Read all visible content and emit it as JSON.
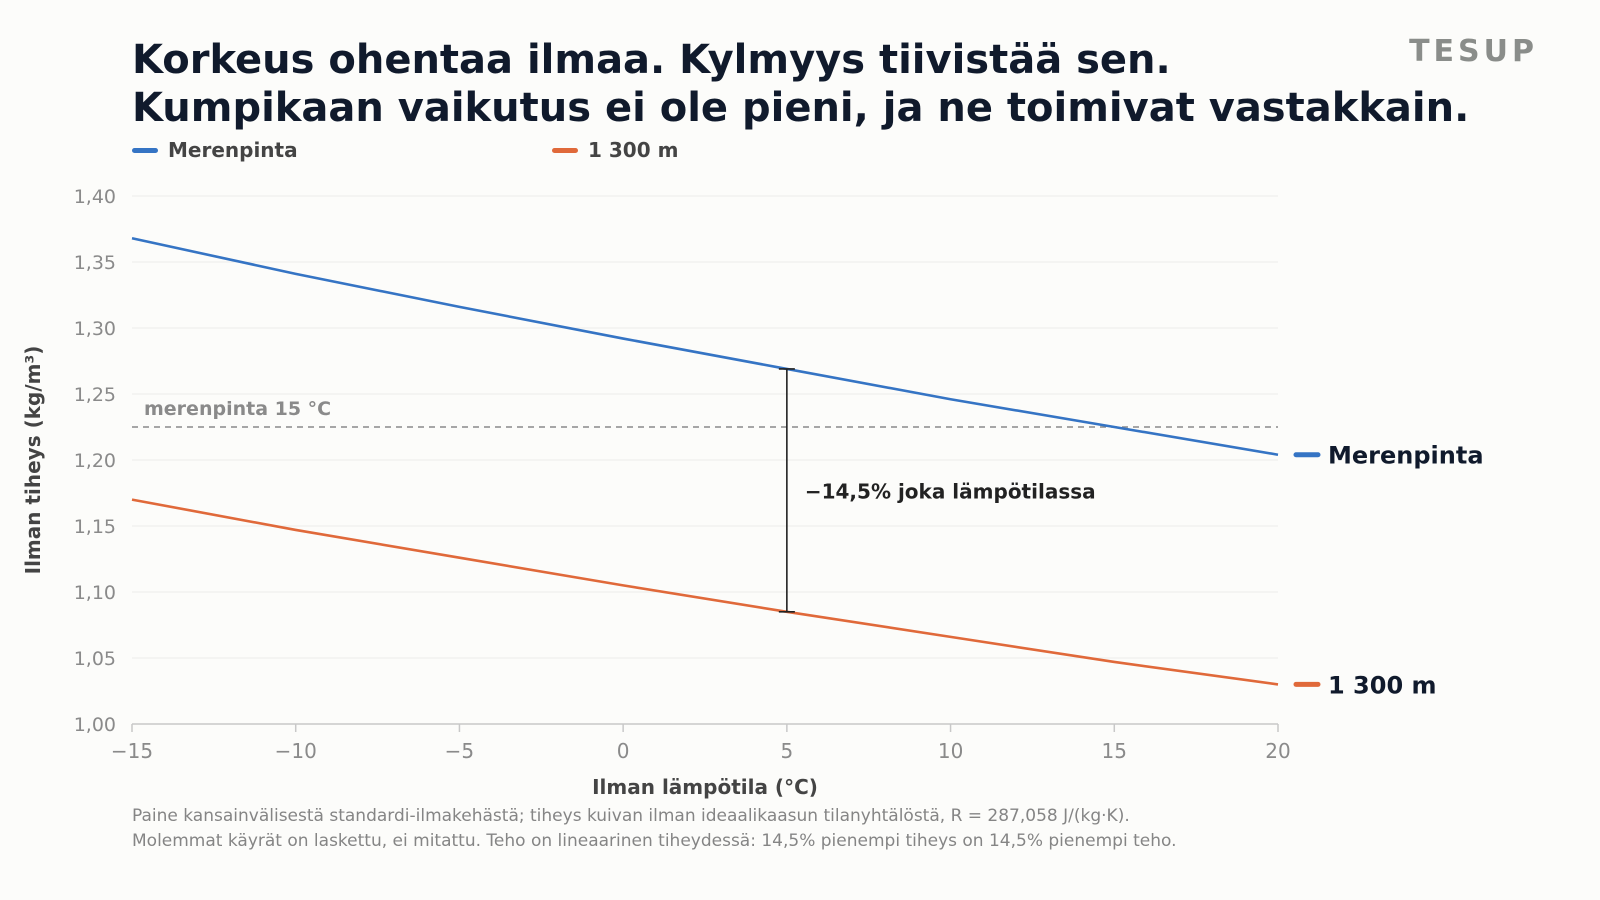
{
  "header": {
    "title_line1": "Korkeus ohentaa ilmaa. Kylmyys tiivistää sen.",
    "title_line2": "Kumpikaan vaikutus ei ole pieni, ja ne toimivat vastakkain.",
    "brand": "TESUP"
  },
  "footnote": {
    "line1": "Paine kansainvälisestä standardi-ilmakehästä; tiheys kuivan ilman ideaalikaasun tilanyhtälöstä, R = 287,058 J/(kg·K).",
    "line2": "Molemmat käyrät on laskettu, ei mitattu. Teho on lineaarinen tiheydessä: 14,5% pienempi tiheys on 14,5% pienempi teho."
  },
  "chart_data": {
    "type": "line",
    "xlabel": "Ilman lämpötila (°C)",
    "ylabel": "Ilman tiheys (kg/m³)",
    "xlim": [
      -15,
      20
    ],
    "ylim": [
      1.0,
      1.4
    ],
    "xticks": [
      -15,
      -10,
      -5,
      0,
      5,
      10,
      15,
      20
    ],
    "xtick_labels": [
      "−15",
      "−10",
      "−5",
      "0",
      "5",
      "10",
      "15",
      "20"
    ],
    "yticks": [
      1.0,
      1.05,
      1.1,
      1.15,
      1.2,
      1.25,
      1.3,
      1.35,
      1.4
    ],
    "ytick_labels": [
      "1,00",
      "1,05",
      "1,10",
      "1,15",
      "1,20",
      "1,25",
      "1,30",
      "1,35",
      "1,40"
    ],
    "grid": "horizontal",
    "legend_position": "top-left",
    "series": [
      {
        "name": "Merenpinta",
        "end_label": "Merenpinta",
        "color": "#3574c4",
        "x": [
          -15,
          -10,
          -5,
          0,
          5,
          10,
          15,
          20
        ],
        "y": [
          1.368,
          1.341,
          1.316,
          1.292,
          1.269,
          1.246,
          1.225,
          1.204
        ]
      },
      {
        "name": "1 300 m",
        "end_label": "1 300 m",
        "color": "#e0693a",
        "x": [
          -15,
          -10,
          -5,
          0,
          5,
          10,
          15,
          20
        ],
        "y": [
          1.17,
          1.147,
          1.126,
          1.105,
          1.085,
          1.066,
          1.047,
          1.03
        ]
      }
    ],
    "reference_line": {
      "y": 1.225,
      "label": "merenpinta 15 °C",
      "color": "#8a8a8a"
    },
    "annotation": {
      "x": 5,
      "y_top": 1.269,
      "y_bottom": 1.085,
      "label": "−14,5% joka lämpötilassa",
      "color": "#222222"
    }
  }
}
